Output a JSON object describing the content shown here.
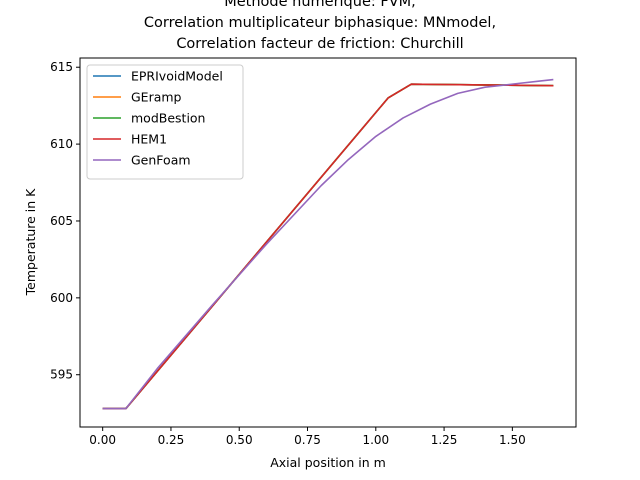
{
  "chart_data": {
    "type": "line",
    "title_lines": [
      "Methode numerique: FVM,",
      "Correlation multiplicateur biphasique: MNmodel,",
      "Correlation facteur de friction: Churchill"
    ],
    "xlabel": "Axial position in m",
    "ylabel": "Temperature in K",
    "xlim": [
      -0.083,
      1.733
    ],
    "ylim": [
      591.6,
      615.6
    ],
    "xticks": [
      0.0,
      0.25,
      0.5,
      0.75,
      1.0,
      1.25,
      1.5
    ],
    "xtick_labels": [
      "0.00",
      "0.25",
      "0.50",
      "0.75",
      "1.00",
      "1.25",
      "1.50"
    ],
    "yticks": [
      595,
      600,
      605,
      610,
      615
    ],
    "ytick_labels": [
      "595",
      "600",
      "605",
      "610",
      "615"
    ],
    "grid": false,
    "legend_position": "top-left",
    "series": [
      {
        "name": "EPRIvoidModel",
        "color": "#1f77b4",
        "x": [
          0.0,
          0.085,
          1.045,
          1.13,
          1.65
        ],
        "y": [
          592.8,
          592.8,
          613.0,
          613.9,
          613.8
        ]
      },
      {
        "name": "GEramp",
        "color": "#ff7f0e",
        "x": [
          0.0,
          0.085,
          1.045,
          1.13,
          1.65
        ],
        "y": [
          592.8,
          592.8,
          613.0,
          613.9,
          613.8
        ]
      },
      {
        "name": "modBestion",
        "color": "#2ca02c",
        "x": [
          0.0,
          0.085,
          1.045,
          1.13,
          1.65
        ],
        "y": [
          592.8,
          592.8,
          613.0,
          613.9,
          613.8
        ]
      },
      {
        "name": "HEM1",
        "color": "#d62728",
        "x": [
          0.0,
          0.085,
          1.045,
          1.13,
          1.65
        ],
        "y": [
          592.8,
          592.8,
          613.0,
          613.9,
          613.8
        ]
      },
      {
        "name": "GenFoam",
        "color": "#9467bd",
        "x": [
          0.0,
          0.085,
          0.2,
          0.4,
          0.6,
          0.8,
          0.9,
          1.0,
          1.1,
          1.2,
          1.3,
          1.4,
          1.5,
          1.6,
          1.65
        ],
        "y": [
          592.8,
          592.8,
          595.4,
          599.5,
          603.5,
          607.3,
          609.0,
          610.5,
          611.7,
          612.6,
          613.3,
          613.7,
          613.9,
          614.1,
          614.2
        ]
      }
    ]
  }
}
